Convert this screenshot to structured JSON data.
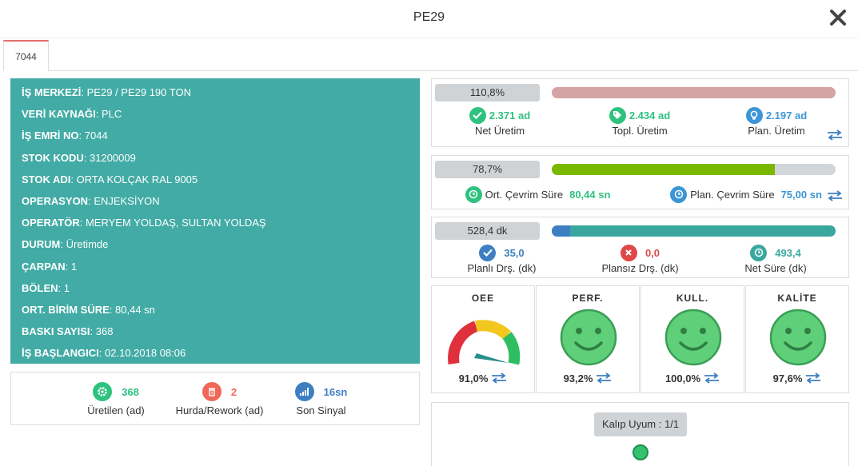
{
  "modal": {
    "title": "PE29"
  },
  "tabs": [
    {
      "label": "7044"
    }
  ],
  "info": {
    "rows": [
      {
        "label": "İŞ MERKEZİ",
        "value": "PE29 / PE29 190 TON"
      },
      {
        "label": "VERİ KAYNAĞI",
        "value": "PLC"
      },
      {
        "label": "İŞ EMRİ NO",
        "value": "7044"
      },
      {
        "label": "STOK KODU",
        "value": "31200009"
      },
      {
        "label": "STOK ADI",
        "value": "ORTA KOLÇAK RAL 9005"
      },
      {
        "label": "OPERASYON",
        "value": "ENJEKSİYON"
      },
      {
        "label": "OPERATÖR",
        "value": "MERYEM YOLDAŞ, SULTAN YOLDAŞ"
      },
      {
        "label": "DURUM",
        "value": "Üretimde"
      },
      {
        "label": "ÇARPAN",
        "value": "1"
      },
      {
        "label": "BÖLEN",
        "value": "1"
      },
      {
        "label": "ORT. BİRİM SÜRE",
        "value": "80,44 sn"
      },
      {
        "label": "BASKI SAYISI",
        "value": "368"
      },
      {
        "label": "İŞ BAŞLANGICI",
        "value": "02.10.2018 08:06"
      }
    ]
  },
  "counts": {
    "produced": {
      "value": "368",
      "label": "Üretilen (ad)",
      "icon": "gear-icon",
      "color": "#2ec27e"
    },
    "scrap": {
      "value": "2",
      "label": "Hurda/Rework (ad)",
      "icon": "trash-icon",
      "color": "#f0675a"
    },
    "last_signal": {
      "value": "16sn",
      "label": "Son Sinyal",
      "icon": "signal-icon",
      "color": "#3e7fc1"
    }
  },
  "production": {
    "percent_label": "110,8%",
    "bar_fraction": 1.0,
    "bar_color": "#d4a3a3",
    "net": {
      "value": "2.371 ad",
      "label": "Net Üretim",
      "icon": "check-icon",
      "color": "#2ec27e"
    },
    "total": {
      "value": "2.434 ad",
      "label": "Topl. Üretim",
      "icon": "tag-icon",
      "color": "#2ec27e"
    },
    "planned": {
      "value": "2.197 ad",
      "label": "Plan. Üretim",
      "icon": "bulb-icon",
      "color": "#3b95d6"
    }
  },
  "cycle": {
    "percent_label": "78,7%",
    "bar_fraction": 0.787,
    "bar_color": "#7ab800",
    "avg": {
      "label": "Ort. Çevrim Süre",
      "value": "80,44 sn",
      "icon": "clock-icon",
      "color": "#2ec27e"
    },
    "planned": {
      "label": "Plan. Çevrim Süre",
      "value": "75,00 sn",
      "icon": "clock-icon",
      "color": "#3b95d6"
    }
  },
  "downtime": {
    "total_label": "528,4 dk",
    "planned_fraction": 0.066,
    "planned_color": "#3e7fc1",
    "net_color": "#3aa79f",
    "planned": {
      "value": "35,0",
      "label": "Planlı Drş. (dk)",
      "icon": "check-icon",
      "color": "#3e7fc1"
    },
    "unplanned": {
      "value": "0,0",
      "label": "Plansız Drş. (dk)",
      "icon": "x-icon",
      "color": "#e04848"
    },
    "net": {
      "value": "493,4",
      "label": "Net Süre (dk)",
      "icon": "clock-icon",
      "color": "#3aa79f"
    }
  },
  "gauges": {
    "oee": {
      "title": "OEE",
      "value": "91,0%",
      "level": 0.91
    },
    "perf": {
      "title": "PERF.",
      "value": "93,2%",
      "icon": "smiley-icon"
    },
    "kull": {
      "title": "KULL.",
      "value": "100,0%",
      "icon": "smiley-icon"
    },
    "kalite": {
      "title": "KALİTE",
      "value": "97,6%",
      "icon": "smiley-icon"
    }
  },
  "mold": {
    "label": "Kalıp Uyum : 1/1",
    "status_color": "#35c16f"
  }
}
